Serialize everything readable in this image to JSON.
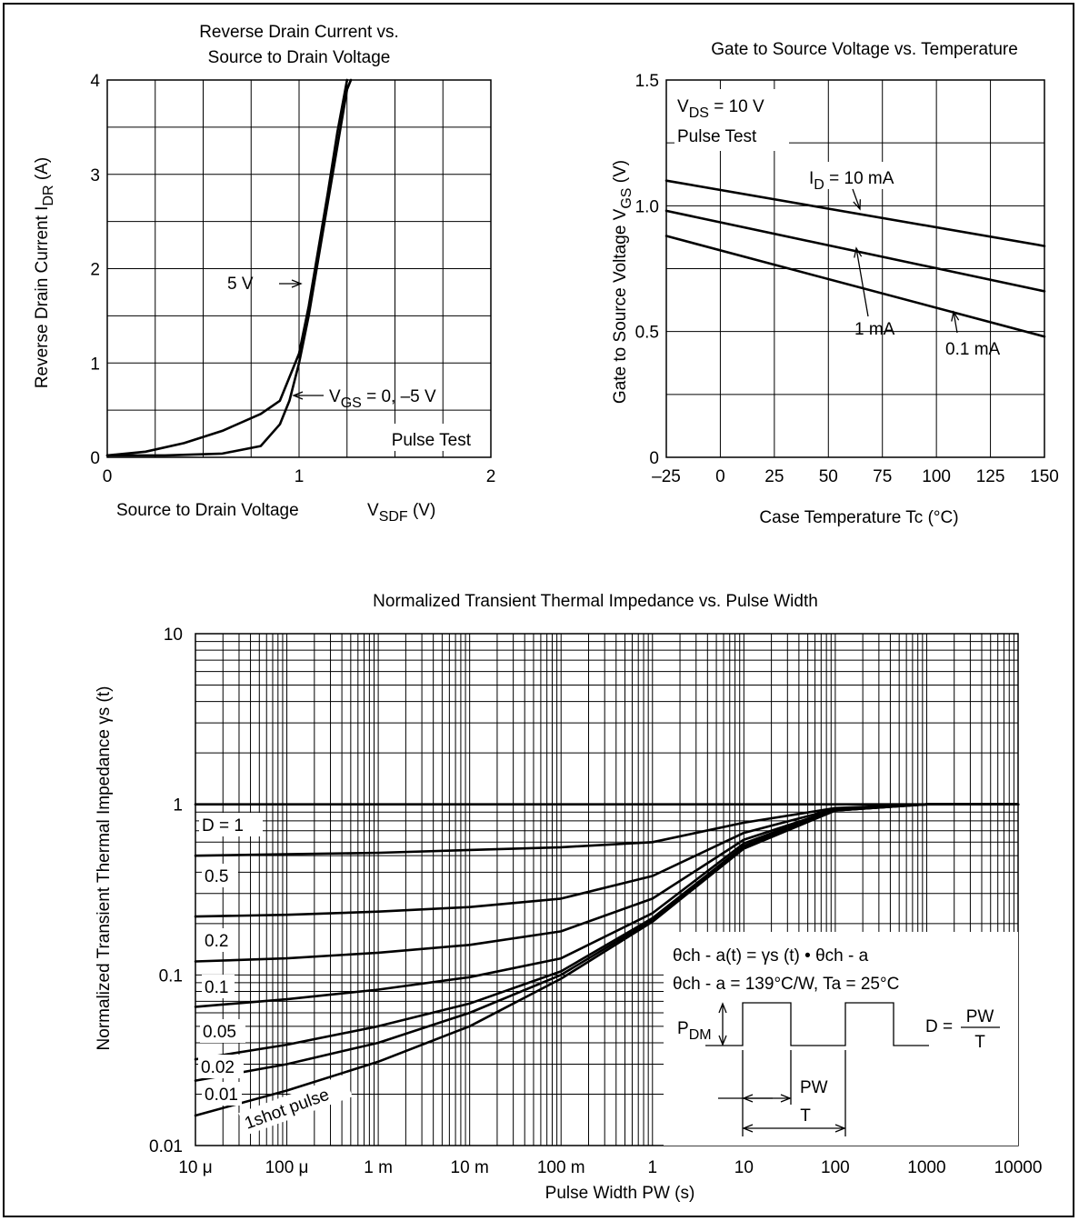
{
  "chart_data": [
    {
      "type": "line",
      "title_lines": [
        "Reverse Drain Current vs.",
        "Source to Drain Voltage"
      ],
      "xlabel": "Source to Drain Voltage",
      "xlabel_symbol": "V",
      "xlabel_sub": "SDF",
      "xlabel_unit": "(V)",
      "ylabel": "Reverse Drain Current",
      "ylabel_symbol": "I",
      "ylabel_sub": "DR",
      "ylabel_unit": "(A)",
      "xlim": [
        0,
        2
      ],
      "ylim": [
        0,
        4
      ],
      "x_ticks": [
        "0",
        "1",
        "2"
      ],
      "y_ticks": [
        "0",
        "1",
        "2",
        "3",
        "4"
      ],
      "grid": true,
      "series": [
        {
          "label_main": "5 V",
          "points": [
            [
              0.0,
              0.02
            ],
            [
              0.2,
              0.06
            ],
            [
              0.4,
              0.15
            ],
            [
              0.6,
              0.28
            ],
            [
              0.8,
              0.46
            ],
            [
              0.9,
              0.6
            ],
            [
              1.0,
              1.1
            ],
            [
              1.05,
              1.6
            ],
            [
              1.1,
              2.2
            ],
            [
              1.15,
              2.8
            ],
            [
              1.2,
              3.45
            ],
            [
              1.25,
              4.0
            ]
          ]
        },
        {
          "label_main": "V",
          "label_sub": "GS",
          "label_rest": " = 0, –5 V",
          "points": [
            [
              0.0,
              0.02
            ],
            [
              0.3,
              0.02
            ],
            [
              0.6,
              0.04
            ],
            [
              0.8,
              0.12
            ],
            [
              0.9,
              0.35
            ],
            [
              0.95,
              0.6
            ],
            [
              1.0,
              1.0
            ],
            [
              1.05,
              1.5
            ],
            [
              1.1,
              2.1
            ],
            [
              1.15,
              2.7
            ],
            [
              1.2,
              3.3
            ],
            [
              1.25,
              3.9
            ],
            [
              1.27,
              4.0
            ]
          ]
        }
      ],
      "annotation": "Pulse Test"
    },
    {
      "type": "line",
      "title": "Gate to Source Voltage vs. Temperature",
      "xlabel": "Case Temperature   Tc    (°C)",
      "ylabel": "Gate to Source Voltage",
      "ylabel_symbol": "V",
      "ylabel_sub": "GS",
      "ylabel_unit": "(V)",
      "xlim": [
        -25,
        150
      ],
      "ylim": [
        0,
        1.5
      ],
      "x_ticks": [
        "–25",
        "0",
        "25",
        "50",
        "75",
        "100",
        "125",
        "150"
      ],
      "y_ticks": [
        "0",
        "0.5",
        "1.0",
        "1.5"
      ],
      "grid": true,
      "conditions": {
        "line1_main": "V",
        "line1_sub": "DS",
        "line1_rest": " = 10 V",
        "line2": "Pulse Test"
      },
      "series": [
        {
          "label_main": "I",
          "label_sub": "D",
          "label_rest": " = 10 mA",
          "x": [
            -25,
            150
          ],
          "y": [
            1.1,
            0.84
          ]
        },
        {
          "label_main": "1 mA",
          "x": [
            -25,
            150
          ],
          "y": [
            0.98,
            0.66
          ]
        },
        {
          "label_main": "0.1 mA",
          "x": [
            -25,
            150
          ],
          "y": [
            0.88,
            0.48
          ]
        }
      ]
    },
    {
      "type": "line",
      "title": "Normalized Transient Thermal Impedance vs. Pulse Width",
      "xlabel": "Pulse Width  PW  (s)",
      "ylabel": "Normalized Transient Thermal Impedance   γs  (t)",
      "x_scale": "log",
      "y_scale": "log",
      "xlim": [
        1e-05,
        10000
      ],
      "ylim": [
        0.01,
        10
      ],
      "x_ticks": [
        "10 μ",
        "100 μ",
        "1 m",
        "10 m",
        "100 m",
        "1",
        "10",
        "100",
        "1000",
        "10000"
      ],
      "y_ticks": [
        "0.01",
        "0.1",
        "1",
        "10"
      ],
      "grid": true,
      "series": [
        {
          "label": "D = 1",
          "x": [
            1e-05,
            10000
          ],
          "y": [
            1.0,
            1.0
          ]
        },
        {
          "label": "0.5",
          "x": [
            1e-05,
            0.0001,
            0.001,
            0.01,
            0.1,
            1,
            10,
            100,
            1000,
            10000
          ],
          "y": [
            0.5,
            0.51,
            0.52,
            0.54,
            0.56,
            0.6,
            0.78,
            0.95,
            1.0,
            1.0
          ]
        },
        {
          "label": "0.2",
          "x": [
            1e-05,
            0.0001,
            0.001,
            0.01,
            0.1,
            1,
            10,
            100,
            1000,
            10000
          ],
          "y": [
            0.22,
            0.225,
            0.235,
            0.25,
            0.28,
            0.38,
            0.68,
            0.94,
            1.0,
            1.0
          ]
        },
        {
          "label": "0.1",
          "x": [
            1e-05,
            0.0001,
            0.001,
            0.01,
            0.1,
            1,
            10,
            100,
            1000,
            10000
          ],
          "y": [
            0.12,
            0.125,
            0.135,
            0.15,
            0.18,
            0.28,
            0.62,
            0.93,
            1.0,
            1.0
          ]
        },
        {
          "label": "0.05",
          "x": [
            1e-05,
            0.0001,
            0.001,
            0.01,
            0.1,
            1,
            10,
            100,
            1000,
            10000
          ],
          "y": [
            0.065,
            0.072,
            0.082,
            0.097,
            0.125,
            0.23,
            0.59,
            0.93,
            1.0,
            1.0
          ]
        },
        {
          "label": "0.02",
          "x": [
            1e-05,
            0.0001,
            0.001,
            0.01,
            0.1,
            1,
            10,
            100,
            1000,
            10000
          ],
          "y": [
            0.032,
            0.039,
            0.05,
            0.068,
            0.105,
            0.215,
            0.57,
            0.92,
            1.0,
            1.0
          ]
        },
        {
          "label": "0.01",
          "x": [
            1e-05,
            0.0001,
            0.001,
            0.01,
            0.1,
            1,
            10,
            100,
            1000,
            10000
          ],
          "y": [
            0.024,
            0.03,
            0.04,
            0.06,
            0.1,
            0.21,
            0.56,
            0.92,
            1.0,
            1.0
          ]
        },
        {
          "label": "1shot pulse",
          "x": [
            1e-05,
            0.0001,
            0.001,
            0.01,
            0.1,
            1,
            10,
            100,
            1000,
            10000
          ],
          "y": [
            0.015,
            0.021,
            0.031,
            0.05,
            0.095,
            0.205,
            0.55,
            0.92,
            1.0,
            1.0
          ]
        }
      ],
      "formula": {
        "line1": "θch - a(t) = γs (t) • θch - a",
        "line2": "θch - a = 139°C/W, Ta = 25°C",
        "pdm_main": "P",
        "pdm_sub": "DM",
        "d_label": "D =",
        "d_num": "PW",
        "d_den": "T",
        "pw_label": "PW",
        "t_label": "T"
      }
    }
  ]
}
